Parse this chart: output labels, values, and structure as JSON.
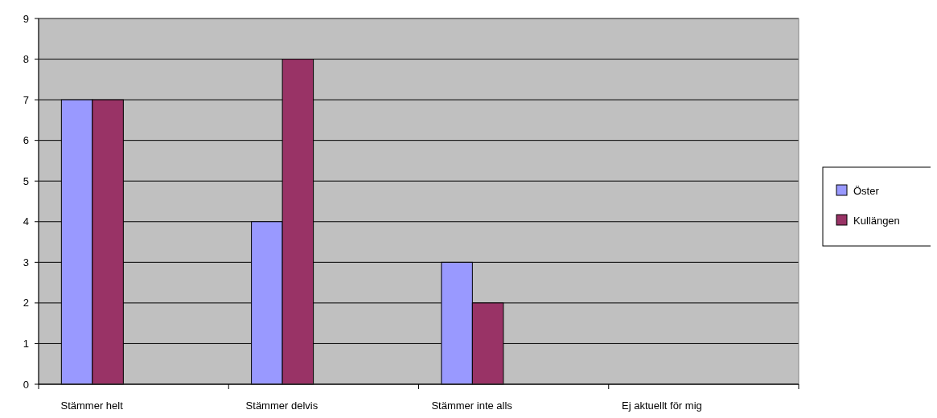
{
  "chart_data": {
    "type": "bar",
    "categories": [
      "Stämmer helt",
      "Stämmer delvis",
      "Stämmer inte alls",
      "Ej aktuellt för mig"
    ],
    "series": [
      {
        "name": "Öster",
        "color": "#9999ff",
        "values": [
          7,
          4,
          3,
          0
        ]
      },
      {
        "name": "Kullängen",
        "color": "#993366",
        "values": [
          7,
          8,
          2,
          0
        ]
      }
    ],
    "ylim": [
      0,
      9
    ],
    "yticks": [
      0,
      1,
      2,
      3,
      4,
      5,
      6,
      7,
      8,
      9
    ],
    "grid": "y",
    "legend": "right"
  }
}
